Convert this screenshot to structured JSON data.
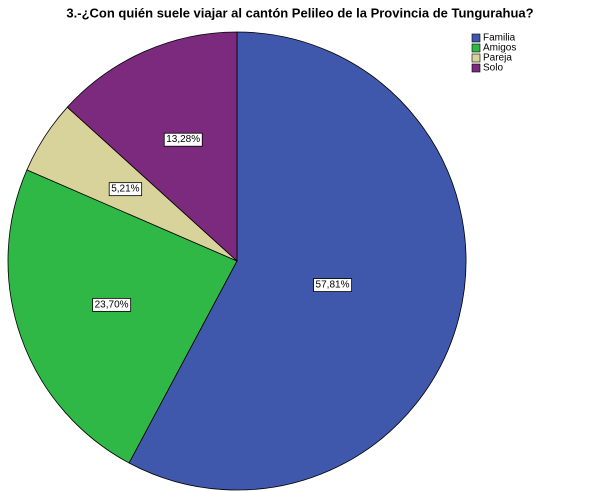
{
  "chart_data": {
    "type": "pie",
    "title": "3.-¿Con quién suele viajar al cantón Pelileo de la Provincia de Tungurahua?",
    "categories": [
      "Familia",
      "Amigos",
      "Pareja",
      "Solo"
    ],
    "values": [
      57.81,
      23.7,
      5.21,
      13.28
    ],
    "value_labels": [
      "57,81%",
      "23,70%",
      "5,21%",
      "13,28%"
    ],
    "colors": [
      "#3f58ab",
      "#2fb846",
      "#d8d39b",
      "#7c2a7e"
    ],
    "legend": "top-right"
  }
}
